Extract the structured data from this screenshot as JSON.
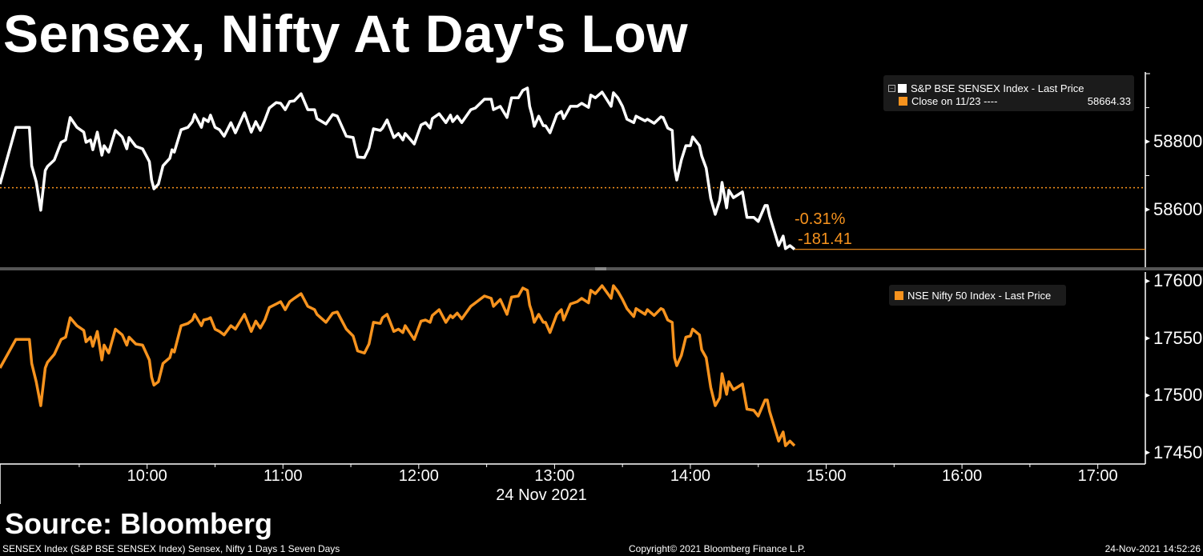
{
  "title": "Sensex, Nifty At Day's Low",
  "source": "Source: Bloomberg",
  "footer": {
    "left": "SENSEX Index (S&P BSE SENSEX Index) Sensex, Nifty 1 Days 1 Seven Days",
    "center": "Copyright© 2021 Bloomberg Finance L.P.",
    "right": "24-Nov-2021 14:52:26"
  },
  "colors": {
    "sensex": "#ffffff",
    "nifty": "#f7931e",
    "close_line": "#f7931e",
    "background": "#000000"
  },
  "legend_top": {
    "series": "S&P BSE SENSEX Index - Last Price",
    "close_label": "Close on 11/23 ----",
    "close_value": "58664.33"
  },
  "legend_bottom": {
    "series": "NSE Nifty 50 Index - Last Price"
  },
  "annotations": {
    "pct_change": "-0.31%",
    "abs_change": "-181.41"
  },
  "chart_data": [
    {
      "type": "line",
      "panel": "top",
      "series": [
        {
          "name": "S&P BSE SENSEX Index - Last Price",
          "color": "#ffffff"
        }
      ],
      "reference_line": {
        "label": "Close on 11/23",
        "value": 58664.33,
        "style": "dotted"
      },
      "last_value_line": 58482.92,
      "ylim": [
        58428,
        59005
      ],
      "yticks": [
        "58800",
        "58600"
      ],
      "yticks_minor": [
        58700,
        58900,
        59000
      ],
      "legend": "top-right",
      "grid": false
    },
    {
      "type": "line",
      "panel": "bottom",
      "series": [
        {
          "name": "NSE Nifty 50 Index - Last Price",
          "color": "#f7931e"
        }
      ],
      "ylim": [
        17440,
        17608
      ],
      "yticks": [
        "17600",
        "17550",
        "17500",
        "17450"
      ],
      "legend": "top-right",
      "grid": false
    }
  ],
  "x_axis": {
    "xlim": [
      "08:55",
      "17:21"
    ],
    "ticks": [
      "10:00",
      "11:00",
      "12:00",
      "13:00",
      "14:00",
      "15:00",
      "16:00",
      "17:00"
    ],
    "date_label": "24 Nov 2021"
  },
  "times": [
    "08:55",
    "09:02",
    "09:08",
    "09:09",
    "09:11",
    "09:13",
    "09:15",
    "09:16",
    "09:19",
    "09:22",
    "09:24",
    "09:26",
    "09:29",
    "09:32",
    "09:33",
    "09:35",
    "09:36",
    "09:38",
    "09:40",
    "09:41",
    "09:43",
    "09:46",
    "09:49",
    "09:51",
    "09:52",
    "09:55",
    "09:58",
    "10:01",
    "10:02",
    "10:03",
    "10:05",
    "10:07",
    "10:10",
    "10:11",
    "10:12",
    "10:15",
    "10:18",
    "10:20",
    "10:21",
    "10:24",
    "10:25",
    "10:27",
    "10:28",
    "10:30",
    "10:32",
    "10:34",
    "10:37",
    "10:39",
    "10:43",
    "10:46",
    "10:48",
    "10:50",
    "10:52",
    "10:54",
    "10:57",
    "10:59",
    "11:01",
    "11:03",
    "11:05",
    "11:08",
    "11:11",
    "11:14",
    "11:15",
    "11:19",
    "11:22",
    "11:24",
    "11:28",
    "11:31",
    "11:33",
    "11:36",
    "11:38",
    "11:40",
    "11:43",
    "11:44",
    "11:46",
    "11:49",
    "11:51",
    "11:53",
    "11:54",
    "11:58",
    "12:01",
    "12:03",
    "12:05",
    "12:06",
    "12:09",
    "12:12",
    "12:14",
    "12:15",
    "12:17",
    "12:19",
    "12:23",
    "12:25",
    "12:29",
    "12:32",
    "12:33",
    "12:36",
    "12:39",
    "12:41",
    "12:44",
    "12:46",
    "12:48",
    "12:49",
    "12:50",
    "12:51",
    "12:53",
    "12:55",
    "12:56",
    "12:58",
    "13:01",
    "13:03",
    "13:04",
    "13:07",
    "13:10",
    "13:12",
    "13:15",
    "13:16",
    "13:18",
    "13:21",
    "13:25",
    "13:26",
    "13:28",
    "13:30",
    "13:32",
    "13:35",
    "13:36",
    "13:40",
    "13:41",
    "13:44",
    "13:47",
    "13:48",
    "13:50",
    "13:52",
    "13:53",
    "13:54",
    "13:56",
    "13:58",
    "14:00",
    "14:01",
    "14:04",
    "14:05",
    "14:07",
    "14:09",
    "14:11",
    "14:13",
    "14:14",
    "14:16",
    "14:17",
    "14:19",
    "14:23",
    "14:25",
    "14:28",
    "14:30",
    "14:33",
    "14:34",
    "14:35",
    "14:39",
    "14:41",
    "14:42",
    "14:44",
    "14:46"
  ],
  "sensex": [
    58675,
    58842,
    58842,
    58729,
    58682,
    58598,
    58715,
    58727,
    58746,
    58798,
    58805,
    58871,
    58842,
    58828,
    58798,
    58805,
    58776,
    58828,
    58760,
    58788,
    58769,
    58833,
    58814,
    58779,
    58812,
    58786,
    58779,
    58741,
    58687,
    58661,
    58675,
    58729,
    58751,
    58776,
    58769,
    58835,
    58842,
    58859,
    58880,
    58842,
    58868,
    58859,
    58878,
    58842,
    58835,
    58816,
    58856,
    58826,
    58885,
    58828,
    58859,
    58833,
    58864,
    58899,
    58915,
    58913,
    58894,
    58918,
    58920,
    58941,
    58894,
    58894,
    58868,
    58852,
    58880,
    58875,
    58816,
    58812,
    58755,
    58753,
    58781,
    58838,
    58833,
    58840,
    58864,
    58812,
    58824,
    58805,
    58824,
    58793,
    58849,
    58856,
    58840,
    58868,
    58882,
    58856,
    58878,
    58859,
    58875,
    58856,
    58894,
    58899,
    58925,
    58925,
    58894,
    58904,
    58871,
    58929,
    58929,
    58951,
    58958,
    58904,
    58880,
    58845,
    58875,
    58847,
    58847,
    58826,
    58880,
    58889,
    58868,
    58904,
    58904,
    58913,
    58901,
    58937,
    58929,
    58946,
    58904,
    58944,
    58929,
    58904,
    58866,
    58856,
    58875,
    58861,
    58866,
    58854,
    58873,
    58871,
    58840,
    58833,
    58722,
    58687,
    58746,
    58788,
    58788,
    58814,
    58788,
    58758,
    58722,
    58633,
    58586,
    58628,
    58680,
    58605,
    58657,
    58635,
    58652,
    58577,
    58577,
    58565,
    58612,
    58612,
    58581,
    58494,
    58522,
    58485,
    58494,
    58483
  ],
  "nifty": [
    17524,
    17549,
    17549,
    17528,
    17512,
    17491,
    17524,
    17529,
    17536,
    17549,
    17551,
    17568,
    17561,
    17557,
    17547,
    17551,
    17543,
    17556,
    17531,
    17544,
    17537,
    17558,
    17553,
    17544,
    17551,
    17545,
    17544,
    17531,
    17516,
    17509,
    17512,
    17528,
    17533,
    17540,
    17538,
    17561,
    17563,
    17566,
    17571,
    17561,
    17566,
    17567,
    17568,
    17558,
    17556,
    17553,
    17561,
    17558,
    17571,
    17556,
    17565,
    17559,
    17566,
    17577,
    17580,
    17582,
    17575,
    17582,
    17585,
    17589,
    17578,
    17575,
    17571,
    17564,
    17572,
    17573,
    17558,
    17552,
    17539,
    17537,
    17545,
    17564,
    17563,
    17568,
    17571,
    17556,
    17558,
    17555,
    17561,
    17549,
    17565,
    17566,
    17564,
    17570,
    17575,
    17564,
    17570,
    17568,
    17572,
    17567,
    17578,
    17581,
    17587,
    17585,
    17578,
    17584,
    17571,
    17586,
    17587,
    17594,
    17592,
    17579,
    17573,
    17564,
    17571,
    17564,
    17564,
    17555,
    17571,
    17575,
    17566,
    17580,
    17582,
    17585,
    17581,
    17592,
    17589,
    17596,
    17585,
    17596,
    17591,
    17584,
    17576,
    17569,
    17576,
    17571,
    17575,
    17570,
    17576,
    17575,
    17566,
    17564,
    17533,
    17526,
    17535,
    17551,
    17552,
    17558,
    17553,
    17540,
    17533,
    17507,
    17491,
    17498,
    17519,
    17501,
    17512,
    17505,
    17510,
    17488,
    17487,
    17482,
    17496,
    17496,
    17486,
    17460,
    17468,
    17456,
    17460,
    17456
  ]
}
